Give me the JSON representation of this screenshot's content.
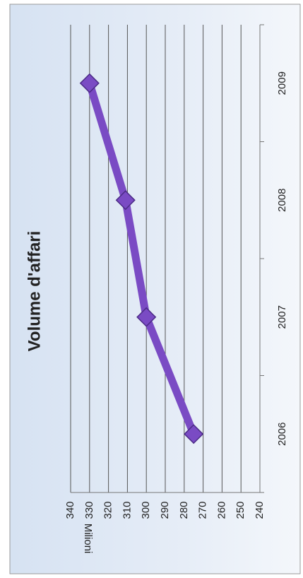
{
  "chart_data": {
    "type": "line",
    "title": "Volume d'affari",
    "y_label": "Milioni",
    "categories": [
      "2006",
      "2007",
      "2008",
      "2009"
    ],
    "series": [
      {
        "name": "Volume d'affari",
        "color": "#7a4bc4",
        "values": [
          275,
          300,
          311,
          330
        ]
      }
    ],
    "ylim": [
      240,
      340
    ],
    "yticks": [
      240,
      250,
      260,
      270,
      280,
      290,
      300,
      310,
      320,
      330,
      340
    ],
    "grid": true
  }
}
